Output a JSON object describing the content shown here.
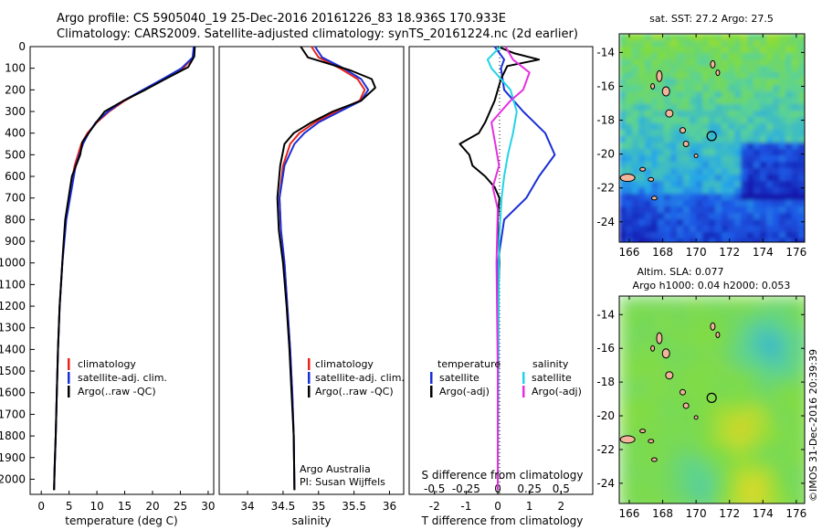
{
  "title": {
    "line1": "Argo profile: CS 5905040_19 25-Dec-2016 20161226_83 18.936S 170.933E",
    "line2": "Climatology: CARS2009. Satellite-adjusted climatology: synTS_20161224.nc (2d earlier)"
  },
  "colors": {
    "climatology": "#e8241a",
    "satellite": "#1a2fd6",
    "argo": "#000000",
    "sat_salinity": "#22d4e6",
    "argo_adj_salinity": "#e62fe0",
    "land": "#f2b49a"
  },
  "chart_data": [
    {
      "type": "line",
      "id": "temperature",
      "xlabel": "temperature (deg C)",
      "xlim": [
        -2,
        31
      ],
      "xticks": [
        "0",
        "5",
        "10",
        "15",
        "20",
        "25",
        "30"
      ],
      "xtick_values": [
        0,
        5,
        10,
        15,
        20,
        25,
        30
      ],
      "ylim": [
        2070,
        0
      ],
      "yticks": [
        "0",
        "100",
        "200",
        "300",
        "400",
        "500",
        "600",
        "700",
        "800",
        "900",
        "1000",
        "1100",
        "1200",
        "1300",
        "1400",
        "1500",
        "1600",
        "1700",
        "1800",
        "1900",
        "2000"
      ],
      "ytick_values": [
        0,
        100,
        200,
        300,
        400,
        500,
        600,
        700,
        800,
        900,
        1000,
        1100,
        1200,
        1300,
        1400,
        1500,
        1600,
        1700,
        1800,
        1900,
        2000
      ],
      "legend": [
        "climatology",
        "satellite-adj. clim.",
        "Argo(..raw -QC)"
      ],
      "series": [
        {
          "name": "climatology",
          "color": "#e8241a",
          "x": [
            27.5,
            27.3,
            25.5,
            22,
            18.5,
            15,
            12.2,
            10,
            8.3,
            7.2,
            6,
            4.4,
            3.8,
            3.3,
            3,
            2.8,
            2.6,
            2.4,
            2.3
          ],
          "y": [
            0,
            50,
            100,
            150,
            200,
            250,
            300,
            350,
            400,
            450,
            550,
            800,
            1000,
            1200,
            1400,
            1600,
            1800,
            1950,
            2050
          ]
        },
        {
          "name": "satellite-adj. clim.",
          "color": "#1a2fd6",
          "x": [
            27.4,
            27.2,
            25.2,
            21.8,
            18.3,
            14.8,
            12,
            9.8,
            8.5,
            7.5,
            6.2,
            4.5,
            3.8,
            3.3,
            3,
            2.8,
            2.6,
            2.4,
            2.3
          ],
          "y": [
            0,
            50,
            100,
            150,
            200,
            250,
            300,
            350,
            400,
            450,
            550,
            800,
            1000,
            1200,
            1400,
            1600,
            1800,
            1950,
            2050
          ]
        },
        {
          "name": "Argo(..raw -QC)",
          "color": "#000000",
          "x": [
            27.6,
            27.5,
            26.4,
            22.3,
            18.7,
            14.8,
            11.4,
            9.9,
            8.5,
            7.4,
            7,
            5.5,
            4.3,
            3.9,
            3.3,
            3,
            2.8,
            2.6,
            2.4,
            2.3
          ],
          "y": [
            0,
            45,
            95,
            150,
            200,
            250,
            300,
            350,
            400,
            440,
            500,
            600,
            800,
            950,
            1200,
            1400,
            1600,
            1800,
            1950,
            2050
          ]
        }
      ]
    },
    {
      "type": "line",
      "id": "salinity",
      "xlabel": "salinity",
      "xlim": [
        33.6,
        36.2
      ],
      "xticks": [
        "34",
        "34.5",
        "35",
        "35.5",
        "36"
      ],
      "xtick_values": [
        34,
        34.5,
        35,
        35.5,
        36
      ],
      "ylim": [
        2070,
        0
      ],
      "legend": [
        "climatology",
        "satellite-adj. clim.",
        "Argo(..raw -QC)"
      ],
      "annotation": [
        "Argo Australia",
        "PI: Susan Wijffels"
      ],
      "series": [
        {
          "name": "climatology",
          "color": "#e8241a",
          "x": [
            34.9,
            35,
            35.3,
            35.55,
            35.65,
            35.58,
            35.25,
            34.95,
            34.73,
            34.6,
            34.5,
            34.45,
            34.47,
            34.52,
            34.56,
            34.6,
            34.63,
            34.65,
            34.66
          ],
          "y": [
            0,
            50,
            100,
            150,
            200,
            250,
            300,
            350,
            400,
            450,
            550,
            700,
            850,
            1000,
            1200,
            1400,
            1600,
            1800,
            2050
          ]
        },
        {
          "name": "satellite-adj. clim.",
          "color": "#1a2fd6",
          "x": [
            34.95,
            35.05,
            35.35,
            35.6,
            35.7,
            35.6,
            35.3,
            35,
            34.8,
            34.66,
            34.52,
            34.45,
            34.47,
            34.52,
            34.56,
            34.6,
            34.63,
            34.65,
            34.66
          ],
          "y": [
            0,
            50,
            100,
            150,
            200,
            250,
            300,
            350,
            400,
            450,
            550,
            700,
            850,
            1000,
            1200,
            1400,
            1600,
            1800,
            2050
          ]
        },
        {
          "name": "Argo(..raw -QC)",
          "color": "#000000",
          "x": [
            34.75,
            34.85,
            35.45,
            35.75,
            35.8,
            35.6,
            35.2,
            34.9,
            34.65,
            34.52,
            34.46,
            34.42,
            34.44,
            34.5,
            34.55,
            34.59,
            34.62,
            34.65,
            34.66
          ],
          "y": [
            0,
            50,
            110,
            150,
            190,
            250,
            300,
            350,
            400,
            450,
            550,
            700,
            850,
            1000,
            1200,
            1400,
            1600,
            1800,
            2050
          ]
        }
      ]
    },
    {
      "type": "line",
      "id": "differences",
      "xlabel": "T difference from climatology",
      "xlim": [
        -2.8,
        3.0
      ],
      "xticks": [
        "-2",
        "-1",
        "0",
        "1",
        "2"
      ],
      "xtick_values": [
        -2,
        -1,
        0,
        1,
        2
      ],
      "top_xlabel": "S difference from climatology",
      "top_xticks": [
        "-0.5",
        "-0.25",
        "0",
        "0.25",
        "0.5"
      ],
      "top_xtick_values": [
        -0.5,
        -0.25,
        0,
        0.25,
        0.5
      ],
      "top_xlim": [
        -0.7,
        0.75
      ],
      "legend_temperature_title": "temperature",
      "legend_temperature": [
        "satellite",
        "Argo(-adj)"
      ],
      "legend_salinity_title": "salinity",
      "legend_salinity": [
        "satellite",
        "Argo(-adj)"
      ],
      "series": [
        {
          "name": "temperature satellite",
          "color": "#1a2fd6",
          "x": [
            -0.1,
            0.2,
            0.1,
            0.2,
            0.8,
            1.5,
            1.8,
            1.3,
            0.9,
            0.2,
            0,
            0,
            0
          ],
          "y": [
            0,
            60,
            100,
            200,
            300,
            400,
            500,
            600,
            700,
            800,
            1000,
            1500,
            2050
          ]
        },
        {
          "name": "temperature Argo(-adj)",
          "color": "#000000",
          "x": [
            0,
            0.5,
            1.3,
            0.3,
            0.1,
            -0.1,
            -0.4,
            -0.6,
            -1.2,
            -0.9,
            -0.8,
            -0.4,
            -0.1,
            0.05,
            0,
            0.05,
            0,
            0,
            0
          ],
          "y": [
            0,
            30,
            60,
            90,
            150,
            250,
            350,
            400,
            450,
            500,
            550,
            600,
            650,
            700,
            800,
            1000,
            1200,
            1600,
            2050
          ]
        },
        {
          "name": "salinity satellite",
          "color": "#22d4e6",
          "x": [
            0.02,
            -0.08,
            -0.05,
            0.1,
            0.15,
            0.12,
            0.08,
            0.05,
            0.03,
            0.01,
            0
          ],
          "y": [
            0,
            60,
            100,
            200,
            300,
            400,
            500,
            600,
            700,
            900,
            2050
          ]
        },
        {
          "name": "salinity Argo(-adj)",
          "color": "#e62fe0",
          "x": [
            0.06,
            0.12,
            0.25,
            0.2,
            0.1,
            -0.05,
            -0.02,
            0.01,
            -0.04,
            0.0,
            -0.01,
            0,
            0
          ],
          "y": [
            0,
            60,
            120,
            200,
            250,
            350,
            450,
            550,
            650,
            750,
            1000,
            1500,
            2050
          ]
        }
      ]
    },
    {
      "type": "heatmap",
      "id": "sst_map",
      "title": "sat. SST: 27.2  Argo: 27.5",
      "xticks": [
        "166",
        "168",
        "170",
        "172",
        "174",
        "176"
      ],
      "xtick_values": [
        166,
        168,
        170,
        172,
        174,
        176
      ],
      "yticks": [
        "-14",
        "-16",
        "-18",
        "-20",
        "-22",
        "-24"
      ],
      "ytick_values": [
        -14,
        -16,
        -18,
        -20,
        -22,
        -24
      ],
      "xlim": [
        165.4,
        176.5
      ],
      "ylim": [
        -25.2,
        -12.9
      ],
      "profile_marker": {
        "lon": 170.933,
        "lat": -18.936
      }
    },
    {
      "type": "heatmap",
      "id": "sla_map",
      "title_line1": "Altim. SLA: 0.077",
      "title_line2": "Argo h1000: 0.04  h2000: 0.053",
      "xticks": [
        "166",
        "168",
        "170",
        "172",
        "174",
        "176"
      ],
      "xtick_values": [
        166,
        168,
        170,
        172,
        174,
        176
      ],
      "yticks": [
        "-14",
        "-16",
        "-18",
        "-20",
        "-22",
        "-24"
      ],
      "ytick_values": [
        -14,
        -16,
        -18,
        -20,
        -22,
        -24
      ],
      "xlim": [
        165.4,
        176.5
      ],
      "ylim": [
        -25.2,
        -12.9
      ],
      "profile_marker": {
        "lon": 170.933,
        "lat": -18.936
      }
    }
  ],
  "credit": "©IMOS 31-Dec-2016 20:39:39"
}
